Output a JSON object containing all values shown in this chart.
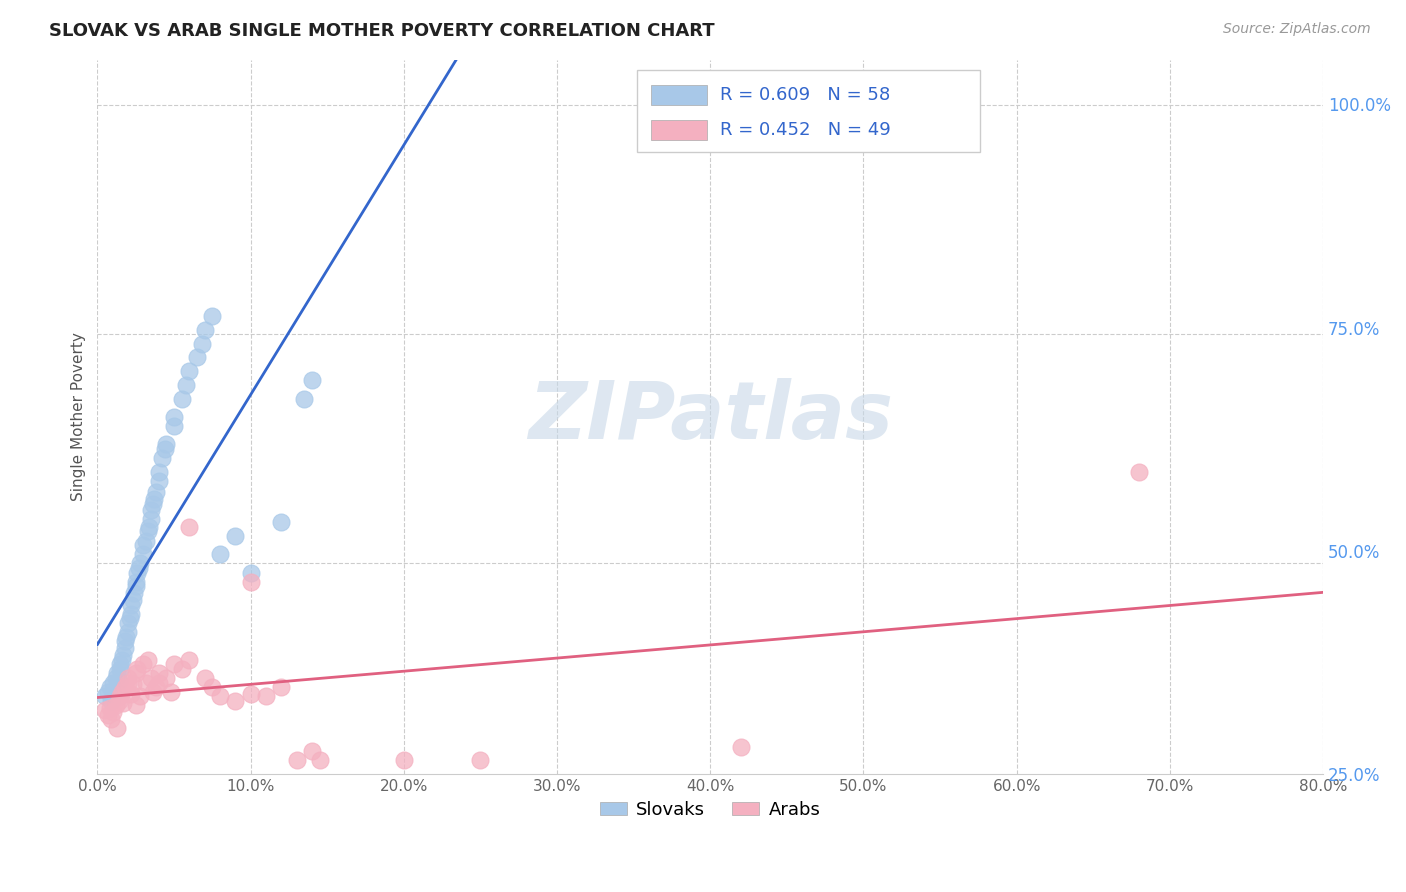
{
  "title": "SLOVAK VS ARAB SINGLE MOTHER POVERTY CORRELATION CHART",
  "source": "Source: ZipAtlas.com",
  "ylabel": "Single Mother Poverty",
  "legend_slovak": "Slovaks",
  "legend_arab": "Arabs",
  "r_slovak": 0.609,
  "n_slovak": 58,
  "r_arab": 0.452,
  "n_arab": 49,
  "slovak_color": "#a8c8e8",
  "arab_color": "#f4b0c0",
  "trendline_slovak_color": "#3366cc",
  "trendline_arab_color": "#e06080",
  "watermark_text": "ZIPatlas",
  "background_color": "#ffffff",
  "slovak_points": [
    [
      0.005,
      0.355
    ],
    [
      0.007,
      0.36
    ],
    [
      0.008,
      0.365
    ],
    [
      0.009,
      0.35
    ],
    [
      0.01,
      0.358
    ],
    [
      0.01,
      0.37
    ],
    [
      0.012,
      0.375
    ],
    [
      0.013,
      0.38
    ],
    [
      0.014,
      0.372
    ],
    [
      0.015,
      0.385
    ],
    [
      0.015,
      0.39
    ],
    [
      0.016,
      0.395
    ],
    [
      0.017,
      0.4
    ],
    [
      0.018,
      0.408
    ],
    [
      0.018,
      0.415
    ],
    [
      0.019,
      0.42
    ],
    [
      0.02,
      0.425
    ],
    [
      0.02,
      0.435
    ],
    [
      0.021,
      0.44
    ],
    [
      0.022,
      0.445
    ],
    [
      0.022,
      0.455
    ],
    [
      0.023,
      0.46
    ],
    [
      0.024,
      0.468
    ],
    [
      0.025,
      0.475
    ],
    [
      0.025,
      0.48
    ],
    [
      0.026,
      0.49
    ],
    [
      0.027,
      0.495
    ],
    [
      0.028,
      0.5
    ],
    [
      0.03,
      0.51
    ],
    [
      0.03,
      0.52
    ],
    [
      0.032,
      0.525
    ],
    [
      0.033,
      0.535
    ],
    [
      0.034,
      0.54
    ],
    [
      0.035,
      0.548
    ],
    [
      0.035,
      0.558
    ],
    [
      0.036,
      0.565
    ],
    [
      0.037,
      0.57
    ],
    [
      0.038,
      0.578
    ],
    [
      0.04,
      0.59
    ],
    [
      0.04,
      0.6
    ],
    [
      0.042,
      0.615
    ],
    [
      0.044,
      0.625
    ],
    [
      0.045,
      0.63
    ],
    [
      0.05,
      0.65
    ],
    [
      0.05,
      0.66
    ],
    [
      0.055,
      0.68
    ],
    [
      0.058,
      0.695
    ],
    [
      0.06,
      0.71
    ],
    [
      0.065,
      0.725
    ],
    [
      0.068,
      0.74
    ],
    [
      0.07,
      0.755
    ],
    [
      0.075,
      0.77
    ],
    [
      0.08,
      0.51
    ],
    [
      0.09,
      0.53
    ],
    [
      0.1,
      0.49
    ],
    [
      0.12,
      0.545
    ],
    [
      0.135,
      0.68
    ],
    [
      0.14,
      0.7
    ]
  ],
  "arab_points": [
    [
      0.005,
      0.34
    ],
    [
      0.007,
      0.335
    ],
    [
      0.008,
      0.342
    ],
    [
      0.009,
      0.33
    ],
    [
      0.01,
      0.338
    ],
    [
      0.012,
      0.345
    ],
    [
      0.013,
      0.32
    ],
    [
      0.014,
      0.35
    ],
    [
      0.015,
      0.355
    ],
    [
      0.016,
      0.36
    ],
    [
      0.017,
      0.348
    ],
    [
      0.018,
      0.365
    ],
    [
      0.02,
      0.37
    ],
    [
      0.02,
      0.375
    ],
    [
      0.022,
      0.358
    ],
    [
      0.023,
      0.368
    ],
    [
      0.025,
      0.345
    ],
    [
      0.025,
      0.38
    ],
    [
      0.026,
      0.385
    ],
    [
      0.028,
      0.355
    ],
    [
      0.03,
      0.39
    ],
    [
      0.032,
      0.37
    ],
    [
      0.033,
      0.395
    ],
    [
      0.035,
      0.375
    ],
    [
      0.036,
      0.36
    ],
    [
      0.038,
      0.365
    ],
    [
      0.04,
      0.37
    ],
    [
      0.04,
      0.38
    ],
    [
      0.045,
      0.375
    ],
    [
      0.048,
      0.36
    ],
    [
      0.05,
      0.39
    ],
    [
      0.055,
      0.385
    ],
    [
      0.06,
      0.395
    ],
    [
      0.06,
      0.54
    ],
    [
      0.07,
      0.375
    ],
    [
      0.075,
      0.365
    ],
    [
      0.08,
      0.355
    ],
    [
      0.09,
      0.35
    ],
    [
      0.1,
      0.358
    ],
    [
      0.1,
      0.48
    ],
    [
      0.11,
      0.355
    ],
    [
      0.12,
      0.365
    ],
    [
      0.13,
      0.285
    ],
    [
      0.14,
      0.295
    ],
    [
      0.145,
      0.285
    ],
    [
      0.2,
      0.285
    ],
    [
      0.25,
      0.285
    ],
    [
      0.42,
      0.3
    ],
    [
      0.68,
      0.6
    ]
  ],
  "xlim": [
    0.0,
    0.8
  ],
  "ylim": [
    0.27,
    1.05
  ],
  "ytick_positions": [
    0.25,
    0.5,
    0.75,
    1.0
  ],
  "xticks": [
    0.0,
    0.1,
    0.2,
    0.3,
    0.4,
    0.5,
    0.6,
    0.7,
    0.8
  ],
  "grid_yticks": [
    0.25,
    0.5,
    0.75,
    1.0
  ],
  "grid_xticks": [
    0.0,
    0.1,
    0.2,
    0.3,
    0.4,
    0.5,
    0.6,
    0.7,
    0.8
  ]
}
